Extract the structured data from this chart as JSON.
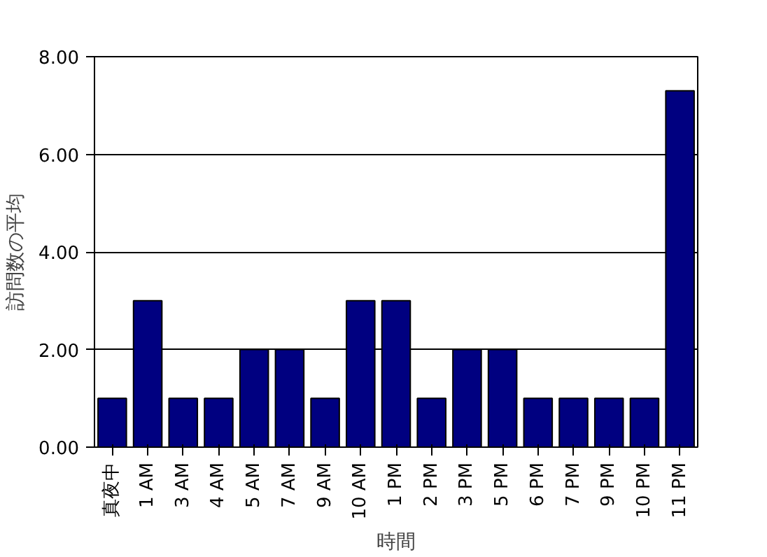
{
  "chart_data": {
    "type": "bar",
    "xlabel": "時間",
    "ylabel": "訪問数の平均",
    "categories": [
      "真夜中",
      "1 AM",
      "3 AM",
      "4 AM",
      "5 AM",
      "7 AM",
      "9 AM",
      "10 AM",
      "1 PM",
      "2 PM",
      "3 PM",
      "5 PM",
      "6 PM",
      "7 PM",
      "9 PM",
      "10 PM",
      "11 PM"
    ],
    "values": [
      1,
      3,
      1,
      1,
      2,
      2,
      1,
      3,
      3,
      1,
      2,
      2,
      1,
      1,
      1,
      1,
      7.3
    ],
    "color": "#000080",
    "ylim": [
      0,
      8
    ],
    "yticks": [
      {
        "value": 0,
        "label": "0.00"
      },
      {
        "value": 2,
        "label": "2.00"
      },
      {
        "value": 4,
        "label": "4.00"
      },
      {
        "value": 6,
        "label": "6.00"
      },
      {
        "value": 8,
        "label": "8.00"
      }
    ],
    "grid": "y"
  }
}
